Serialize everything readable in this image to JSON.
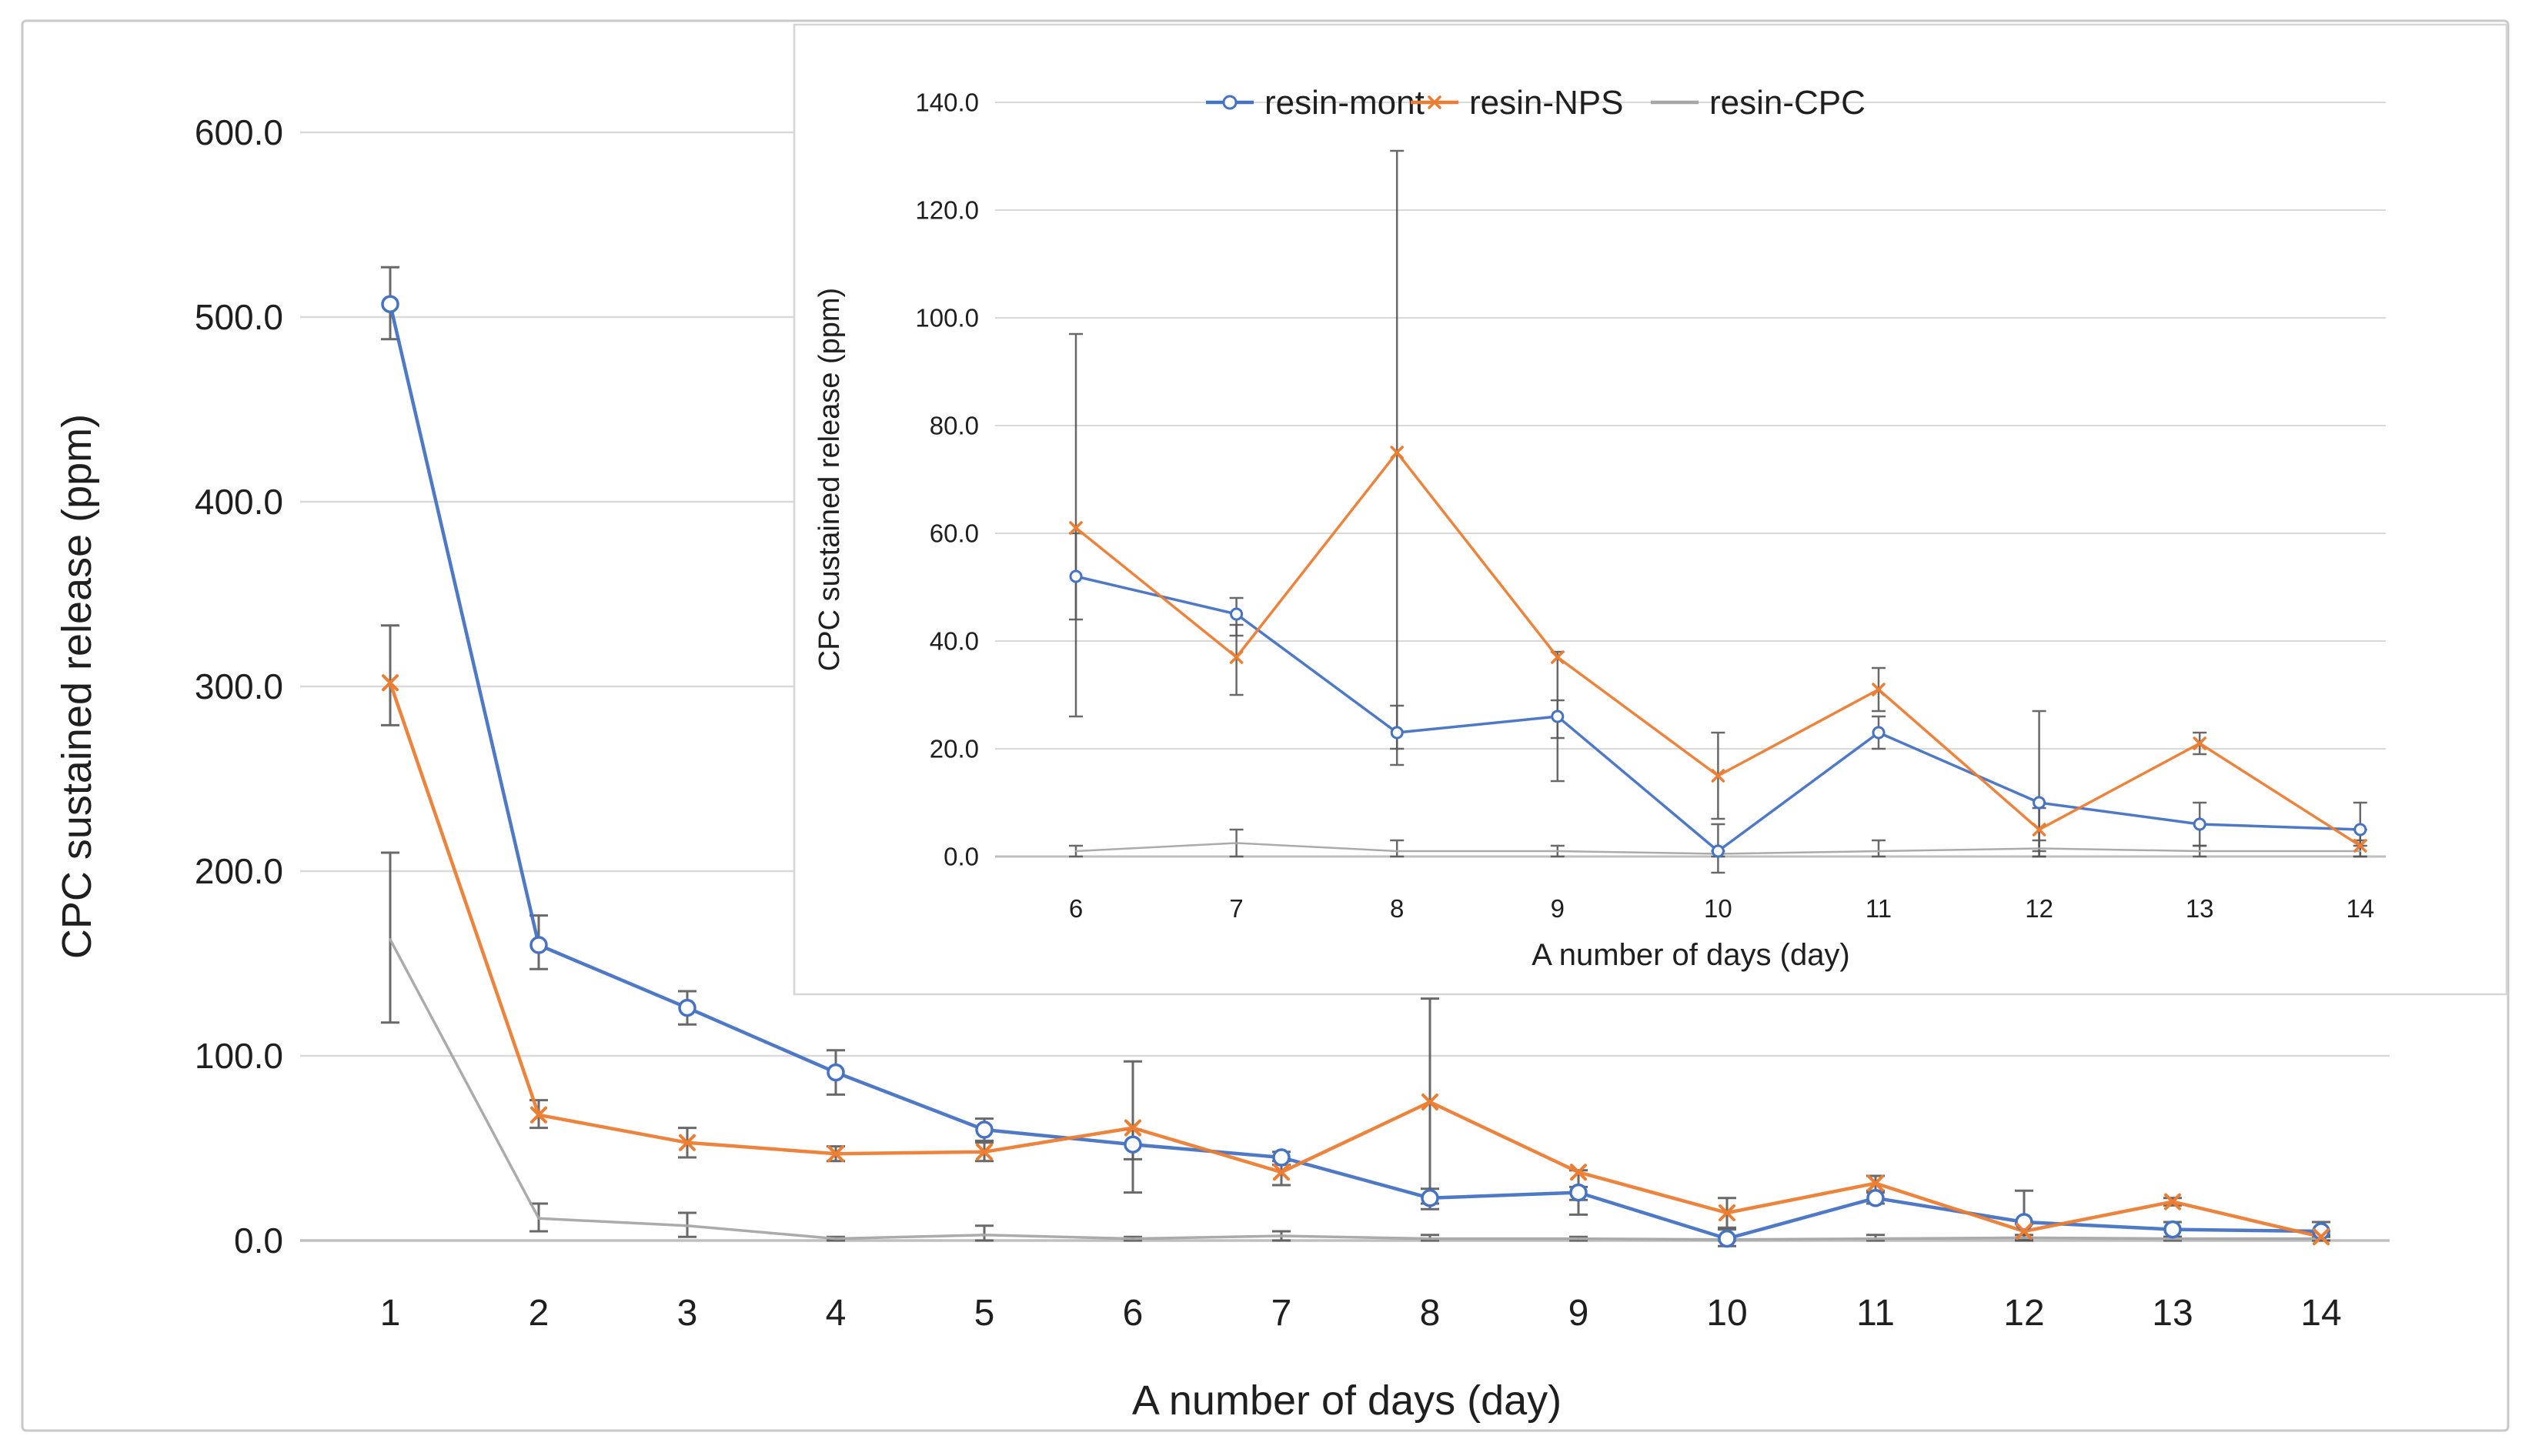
{
  "colors": {
    "resin_mont": "#4472C4",
    "resin_nps": "#ED7D31",
    "resin_cpc": "#A6A6A6",
    "error_bar": "#595959",
    "gridline": "#D9D9D9",
    "axis_line": "#BFBFBF",
    "text": "#1F1F1F",
    "inset_border": "#D6D6D6",
    "figure_border": "#C9C9C9",
    "background": "#FFFFFF"
  },
  "chart_data": [
    {
      "id": "main",
      "type": "line",
      "xlabel": "A number of days (day)",
      "ylabel": "CPC sustained release (ppm)",
      "x": [
        1,
        2,
        3,
        4,
        5,
        6,
        7,
        8,
        9,
        10,
        11,
        12,
        13,
        14
      ],
      "xtick_labels": [
        "1",
        "2",
        "3",
        "4",
        "5",
        "6",
        "7",
        "8",
        "9",
        "10",
        "11",
        "12",
        "13",
        "14"
      ],
      "ylim": [
        0,
        600
      ],
      "ytick_step": 100,
      "ytick_labels": [
        "0.0",
        "100.0",
        "200.0",
        "300.0",
        "400.0",
        "500.0",
        "600.0"
      ],
      "grid": true,
      "legend": {
        "visible": false
      },
      "series": [
        {
          "name": "resin-mont",
          "color": "#4472C4",
          "marker": "circle",
          "values": [
            507,
            160,
            126,
            91,
            60,
            52,
            45,
            23,
            26,
            1,
            23,
            10,
            6,
            5
          ],
          "err_lo": [
            488,
            147,
            117,
            79,
            54,
            44,
            41,
            17,
            22,
            -3,
            20,
            0,
            2,
            2
          ],
          "err_hi": [
            527,
            176,
            135,
            103,
            66,
            60,
            48,
            28,
            29,
            6,
            26,
            27,
            10,
            10
          ]
        },
        {
          "name": "resin-NPS",
          "color": "#ED7D31",
          "marker": "x",
          "values": [
            302,
            68,
            53,
            47,
            48,
            61,
            37,
            75,
            37,
            15,
            31,
            5,
            21,
            2
          ],
          "err_lo": [
            279,
            61,
            45,
            43,
            43,
            26,
            30,
            20,
            14,
            7,
            27,
            1,
            19,
            0
          ],
          "err_hi": [
            333,
            76,
            61,
            51,
            53,
            97,
            43,
            131,
            38,
            23,
            35,
            9,
            23,
            5
          ]
        },
        {
          "name": "resin-CPC",
          "color": "#A6A6A6",
          "marker": "none",
          "values": [
            163,
            12,
            8,
            1,
            3,
            1,
            2.5,
            1,
            1,
            0.5,
            1,
            1.5,
            1,
            1
          ],
          "err_lo": [
            118,
            5,
            2,
            0,
            0,
            0,
            0,
            0,
            0,
            0,
            0,
            0,
            0,
            0
          ],
          "err_hi": [
            210,
            20,
            15,
            2,
            8,
            2,
            5,
            3,
            2,
            1,
            3,
            3,
            2,
            3
          ]
        }
      ]
    },
    {
      "id": "inset",
      "type": "line",
      "xlabel": "A number of days (day)",
      "ylabel": "CPC sustained release (ppm)",
      "x": [
        6,
        7,
        8,
        9,
        10,
        11,
        12,
        13,
        14
      ],
      "xtick_labels": [
        "6",
        "7",
        "8",
        "9",
        "10",
        "11",
        "12",
        "13",
        "14"
      ],
      "ylim": [
        0,
        140
      ],
      "ytick_step": 20,
      "ytick_labels": [
        "0.0",
        "20.0",
        "40.0",
        "60.0",
        "80.0",
        "100.0",
        "120.0",
        "140.0"
      ],
      "grid": true,
      "legend": {
        "visible": true,
        "position": "top-inside",
        "labels": [
          "resin-mont",
          "resin-NPS",
          "resin-CPC"
        ]
      },
      "series": [
        {
          "name": "resin-mont",
          "color": "#4472C4",
          "marker": "circle",
          "values": [
            52,
            45,
            23,
            26,
            1,
            23,
            10,
            6,
            5
          ],
          "err_lo": [
            44,
            41,
            17,
            22,
            -3,
            20,
            0,
            2,
            2
          ],
          "err_hi": [
            60,
            48,
            28,
            29,
            6,
            26,
            27,
            10,
            10
          ]
        },
        {
          "name": "resin-NPS",
          "color": "#ED7D31",
          "marker": "x",
          "values": [
            61,
            37,
            75,
            37,
            15,
            31,
            5,
            21,
            2
          ],
          "err_lo": [
            26,
            30,
            20,
            14,
            7,
            27,
            1,
            19,
            0
          ],
          "err_hi": [
            97,
            43,
            131,
            38,
            23,
            35,
            9,
            23,
            5
          ]
        },
        {
          "name": "resin-CPC",
          "color": "#A6A6A6",
          "marker": "none",
          "values": [
            1,
            2.5,
            1,
            1,
            0.5,
            1,
            1.5,
            1,
            1
          ],
          "err_lo": [
            0,
            0,
            0,
            0,
            0,
            0,
            0,
            0,
            0
          ],
          "err_hi": [
            2,
            5,
            3,
            2,
            1,
            3,
            3,
            2,
            3
          ]
        }
      ]
    }
  ]
}
